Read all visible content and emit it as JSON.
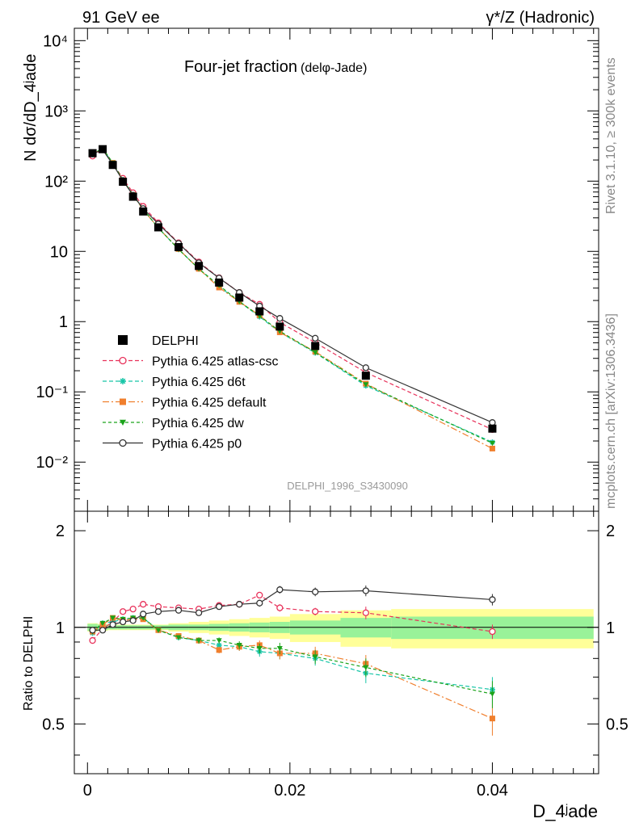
{
  "header": {
    "left_label": "91 GeV ee",
    "right_label": "γ*/Z (Hadronic)"
  },
  "side_labels": {
    "rivet": "Rivet 3.1.10, ≥ 300k events",
    "mcplots": "mcplots.cern.ch [arXiv:1306.3436]"
  },
  "chart_data": {
    "type": "line",
    "title": "Four-jet fraction",
    "subtitle": "(delφ-Jade)",
    "watermark": "DELPHI_1996_S3430090",
    "xlabel": "D_4ʲade",
    "ylabel": "N dσ/dD_4ʲade",
    "ratio_ylabel": "Ratio to DELPHI",
    "xlim": [
      -0.0013,
      0.0505
    ],
    "ylim": [
      0.002,
      15000
    ],
    "ratio_ylim": [
      0.35,
      2.3
    ],
    "x_ticks": [
      "0",
      "0.02",
      "0.04"
    ],
    "x_tick_values": [
      0,
      0.02,
      0.04
    ],
    "y_ticks": [
      "10⁻²",
      "10⁻¹",
      "1",
      "10",
      "10²",
      "10³",
      "10⁴"
    ],
    "y_tick_values": [
      0.01,
      0.1,
      1,
      10,
      100,
      1000,
      10000
    ],
    "ratio_ticks": [
      "0.5",
      "1",
      "2"
    ],
    "ratio_tick_values": [
      0.5,
      1,
      2
    ],
    "x": [
      0.0005,
      0.0015,
      0.0025,
      0.0035,
      0.0045,
      0.0055,
      0.007,
      0.009,
      0.011,
      0.013,
      0.015,
      0.017,
      0.019,
      0.0225,
      0.0275,
      0.04
    ],
    "reference": {
      "name": "DELPHI",
      "values": [
        250,
        285,
        170,
        98,
        60,
        37,
        22,
        11.5,
        6.2,
        3.6,
        2.2,
        1.4,
        0.85,
        0.45,
        0.17,
        0.03
      ]
    },
    "band_edges": [
      0,
      0.001,
      0.002,
      0.003,
      0.004,
      0.005,
      0.006,
      0.008,
      0.01,
      0.012,
      0.014,
      0.016,
      0.018,
      0.02,
      0.025,
      0.03,
      0.05
    ],
    "band_inner": [
      0.025,
      0.02,
      0.015,
      0.015,
      0.015,
      0.015,
      0.015,
      0.02,
      0.02,
      0.025,
      0.03,
      0.035,
      0.04,
      0.05,
      0.07,
      0.08
    ],
    "band_outer": [
      0.03,
      0.025,
      0.02,
      0.02,
      0.02,
      0.02,
      0.02,
      0.03,
      0.04,
      0.05,
      0.06,
      0.07,
      0.08,
      0.1,
      0.13,
      0.14
    ],
    "series": [
      {
        "name": "Pythia 6.425 atlas-csc",
        "color": "#e8315a",
        "marker": "circle-open",
        "dash": "5,3",
        "ratio": [
          0.91,
          0.99,
          1.04,
          1.12,
          1.14,
          1.18,
          1.16,
          1.15,
          1.14,
          1.17,
          1.18,
          1.26,
          1.15,
          1.12,
          1.11,
          0.97
        ],
        "ratio_err": [
          0.01,
          0.01,
          0.01,
          0.01,
          0.01,
          0.01,
          0.01,
          0.01,
          0.015,
          0.015,
          0.02,
          0.025,
          0.03,
          0.03,
          0.05,
          0.05
        ]
      },
      {
        "name": "Pythia 6.425 d6t",
        "color": "#17c5a7",
        "marker": "star",
        "dash": "5,3",
        "ratio": [
          0.96,
          1.03,
          1.04,
          1.06,
          1.07,
          1.07,
          0.98,
          0.93,
          0.91,
          0.88,
          0.87,
          0.84,
          0.83,
          0.8,
          0.72,
          0.64
        ],
        "ratio_err": [
          0.01,
          0.01,
          0.01,
          0.01,
          0.01,
          0.01,
          0.015,
          0.015,
          0.02,
          0.02,
          0.025,
          0.03,
          0.035,
          0.04,
          0.05,
          0.06
        ]
      },
      {
        "name": "Pythia 6.425 default",
        "color": "#f07f2d",
        "marker": "square",
        "dash": "8,3,2,3",
        "ratio": [
          0.97,
          1.02,
          1.07,
          1.05,
          1.06,
          1.06,
          0.98,
          0.94,
          0.91,
          0.85,
          0.87,
          0.88,
          0.83,
          0.83,
          0.77,
          0.52
        ],
        "ratio_err": [
          0.01,
          0.01,
          0.01,
          0.01,
          0.01,
          0.01,
          0.015,
          0.015,
          0.02,
          0.02,
          0.025,
          0.03,
          0.035,
          0.04,
          0.05,
          0.06
        ]
      },
      {
        "name": "Pythia 6.425 dw",
        "color": "#1aa31a",
        "marker": "triangle-down",
        "dash": "4,3",
        "ratio": [
          0.97,
          1.03,
          1.07,
          1.06,
          1.07,
          1.07,
          0.98,
          0.93,
          0.91,
          0.91,
          0.88,
          0.86,
          0.86,
          0.81,
          0.75,
          0.62
        ],
        "ratio_err": [
          0.01,
          0.01,
          0.01,
          0.01,
          0.01,
          0.01,
          0.015,
          0.015,
          0.02,
          0.02,
          0.025,
          0.03,
          0.035,
          0.04,
          0.05,
          0.06
        ]
      },
      {
        "name": "Pythia 6.425 p0",
        "color": "#333333",
        "marker": "circle-open",
        "dash": "",
        "ratio": [
          0.98,
          0.98,
          1.02,
          1.04,
          1.05,
          1.1,
          1.12,
          1.13,
          1.11,
          1.16,
          1.18,
          1.19,
          1.31,
          1.29,
          1.3,
          1.22
        ],
        "ratio_err": [
          0.01,
          0.01,
          0.01,
          0.01,
          0.01,
          0.01,
          0.015,
          0.015,
          0.02,
          0.02,
          0.025,
          0.03,
          0.035,
          0.04,
          0.05,
          0.05
        ]
      }
    ]
  }
}
